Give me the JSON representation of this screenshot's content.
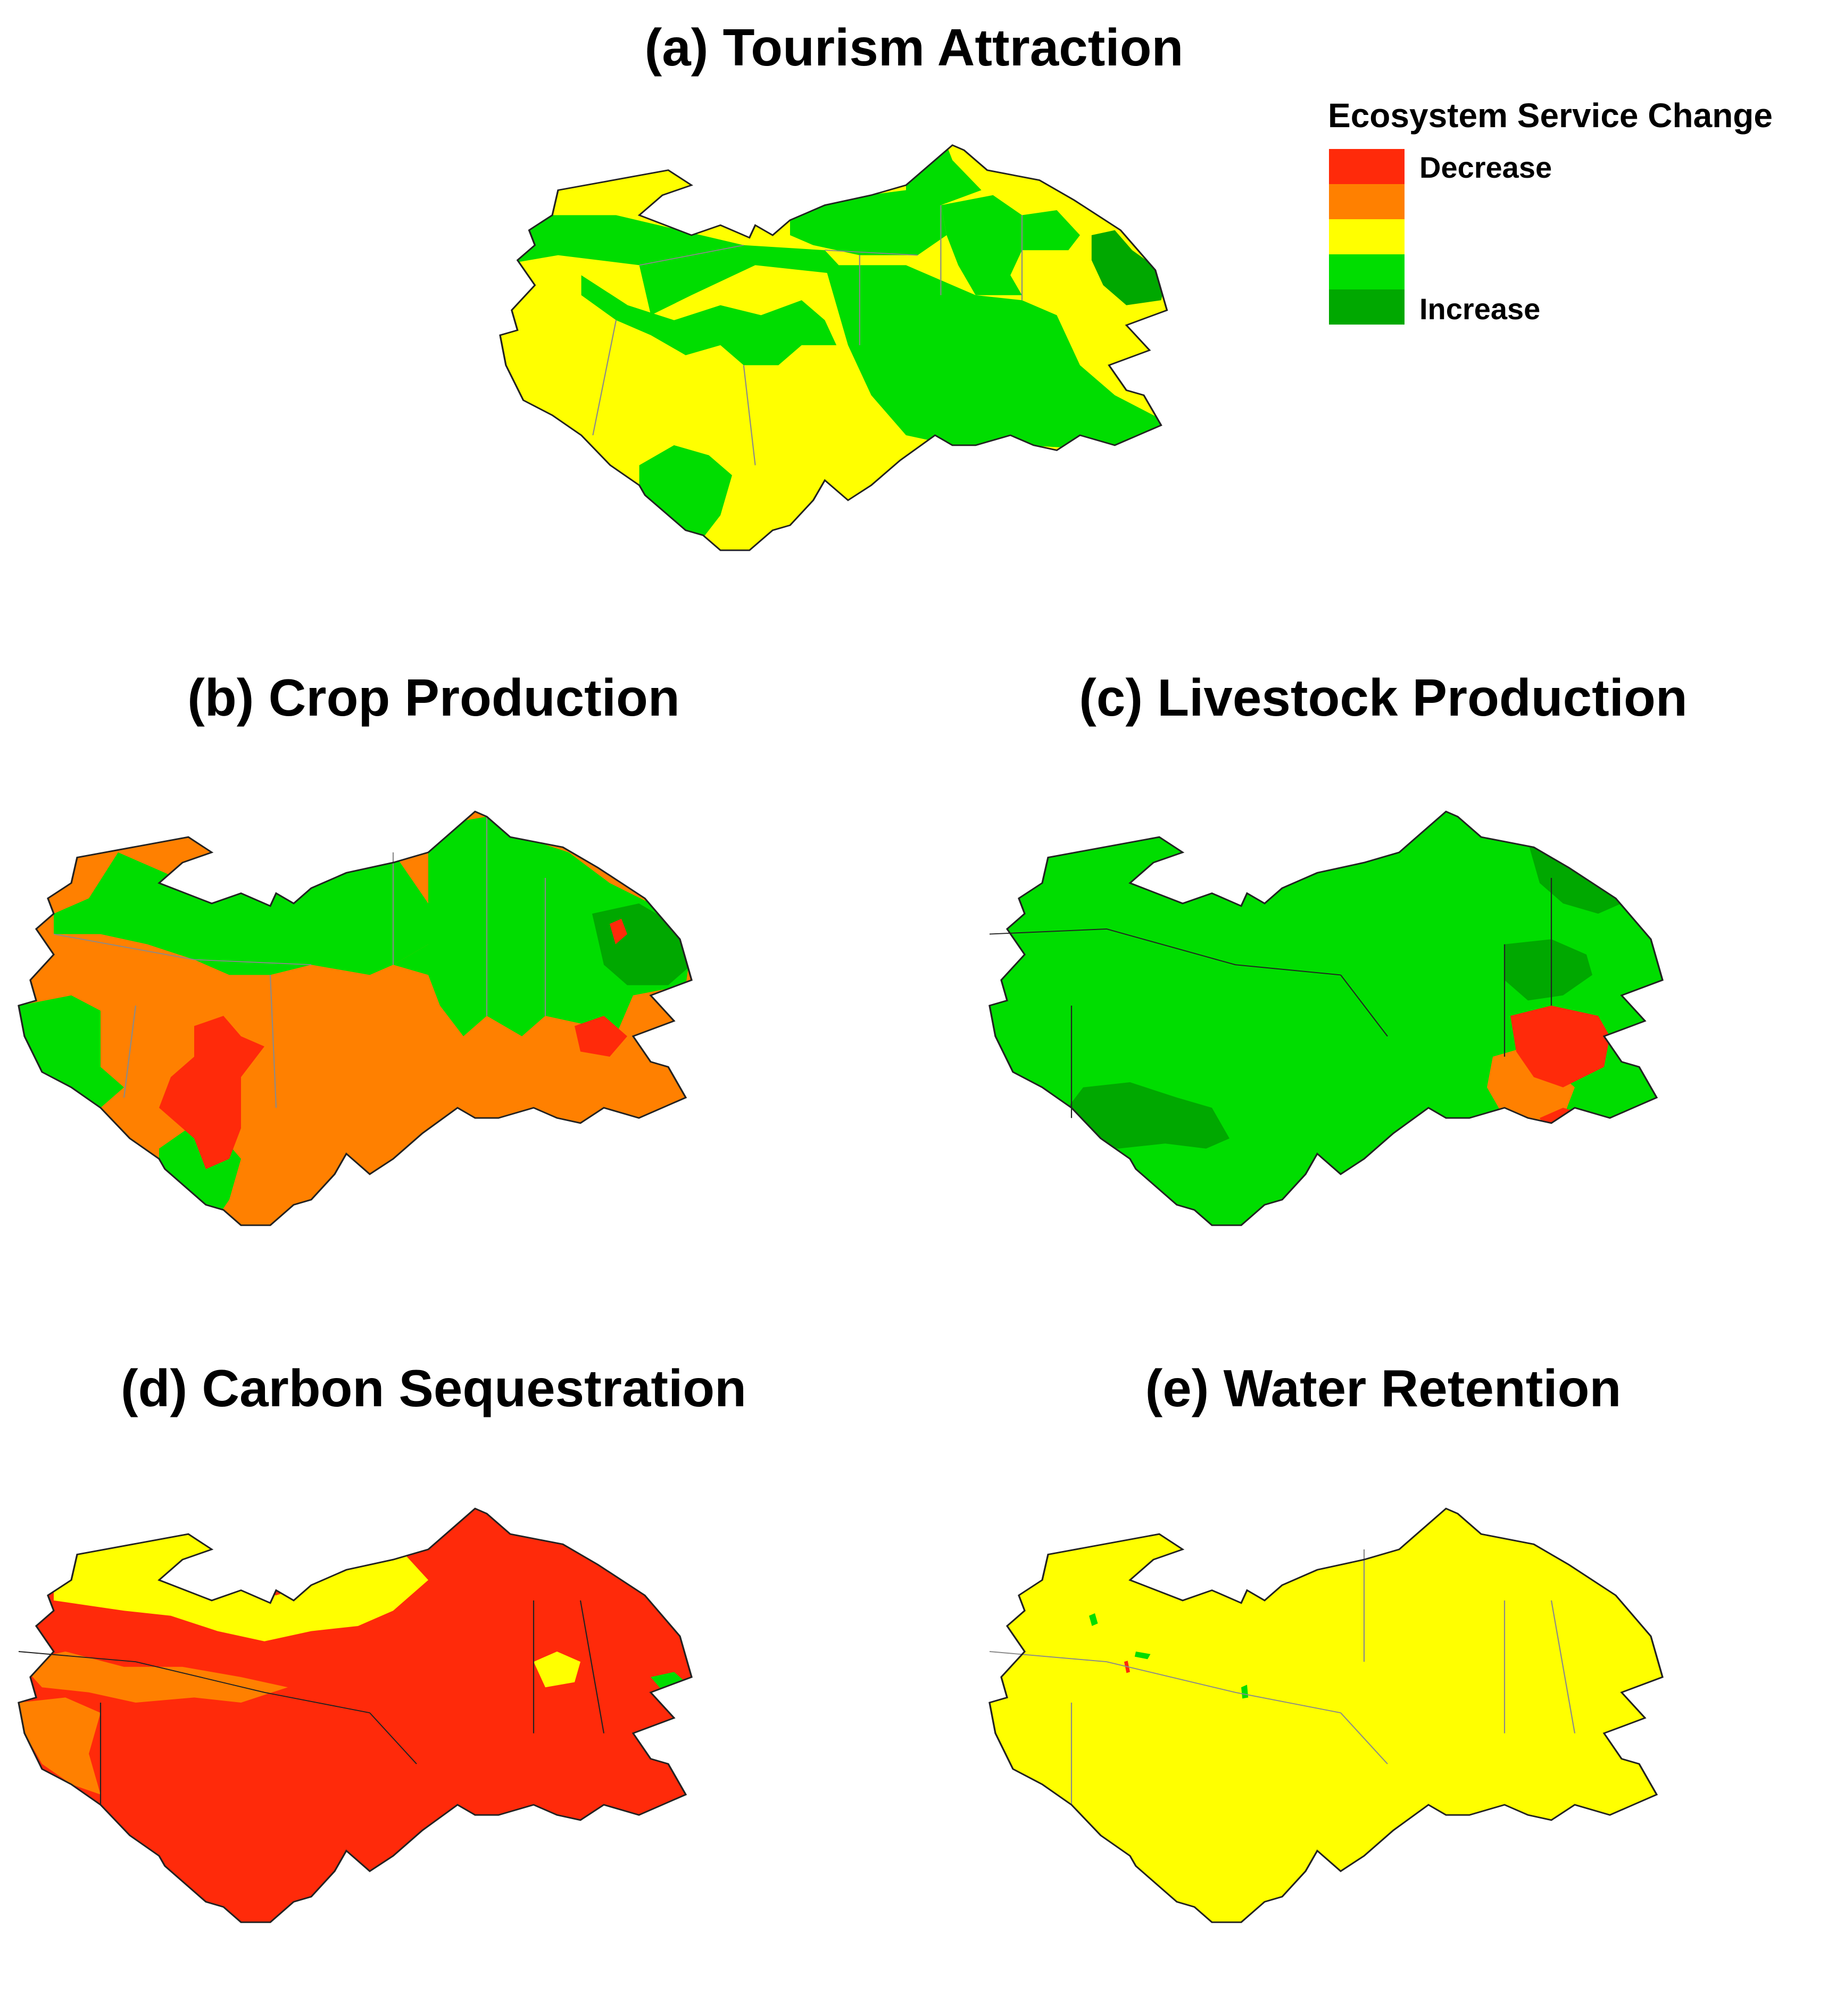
{
  "colors": {
    "class_1": "#ff2a0a",
    "class_2": "#ff8000",
    "class_3": "#ffff00",
    "class_4": "#00dd00",
    "class_5": "#00a800",
    "boundary": "#222222",
    "inner_boundary": "#8a8a8a"
  },
  "legend": {
    "title": "Ecosystem Service Change",
    "decrease_label": "Decrease",
    "increase_label": "Increase",
    "classes": [
      "class_1",
      "class_2",
      "class_3",
      "class_4",
      "class_5"
    ]
  },
  "panels": [
    {
      "id": "a",
      "title": "(a) Tourism Attraction",
      "base": "class_3",
      "regions": [
        {
          "name": "west-band",
          "level": "class_4"
        },
        {
          "name": "north-central",
          "level": "class_4"
        },
        {
          "name": "east-corridor",
          "level": "class_4"
        },
        {
          "name": "central-lobe",
          "level": "class_4"
        },
        {
          "name": "south-tip",
          "level": "class_4"
        },
        {
          "name": "south-east-block",
          "level": "class_4"
        },
        {
          "name": "far-east-core",
          "level": "class_5"
        }
      ]
    },
    {
      "id": "b",
      "title": "(b) Crop Production",
      "base": "class_2",
      "regions": [
        {
          "name": "central-band",
          "level": "class_4"
        },
        {
          "name": "south-west-block",
          "level": "class_4"
        },
        {
          "name": "east-block",
          "level": "class_4"
        },
        {
          "name": "south-tip",
          "level": "class_4"
        },
        {
          "name": "far-east-core",
          "level": "class_5"
        },
        {
          "name": "south-wedge",
          "level": "class_1"
        },
        {
          "name": "east-spot-1",
          "level": "class_1"
        },
        {
          "name": "east-spot-2",
          "level": "class_1"
        },
        {
          "name": "south-east-spot",
          "level": "class_1"
        }
      ]
    },
    {
      "id": "c",
      "title": "(c) Livestock Production",
      "base": "class_4",
      "regions": [
        {
          "name": "south-central-block",
          "level": "class_5"
        },
        {
          "name": "north-east-strip",
          "level": "class_5"
        },
        {
          "name": "east-mid-block",
          "level": "class_5"
        },
        {
          "name": "south-east-orange",
          "level": "class_2"
        },
        {
          "name": "south-east-red",
          "level": "class_1"
        },
        {
          "name": "south-east-red-2",
          "level": "class_1"
        }
      ]
    },
    {
      "id": "d",
      "title": "(d) Carbon Sequestration",
      "base": "class_1",
      "regions": [
        {
          "name": "north-plateau",
          "level": "class_3"
        },
        {
          "name": "west-band",
          "level": "class_2"
        },
        {
          "name": "south-west-block",
          "level": "class_2"
        },
        {
          "name": "east-lake",
          "level": "class_3"
        },
        {
          "name": "east-edge",
          "level": "class_4"
        }
      ]
    },
    {
      "id": "e",
      "title": "(e) Water Retention",
      "base": "class_3",
      "regions": [
        {
          "name": "speck-1",
          "level": "class_4"
        },
        {
          "name": "speck-2",
          "level": "class_4"
        },
        {
          "name": "speck-3",
          "level": "class_4"
        },
        {
          "name": "speck-4",
          "level": "class_1"
        }
      ]
    }
  ]
}
